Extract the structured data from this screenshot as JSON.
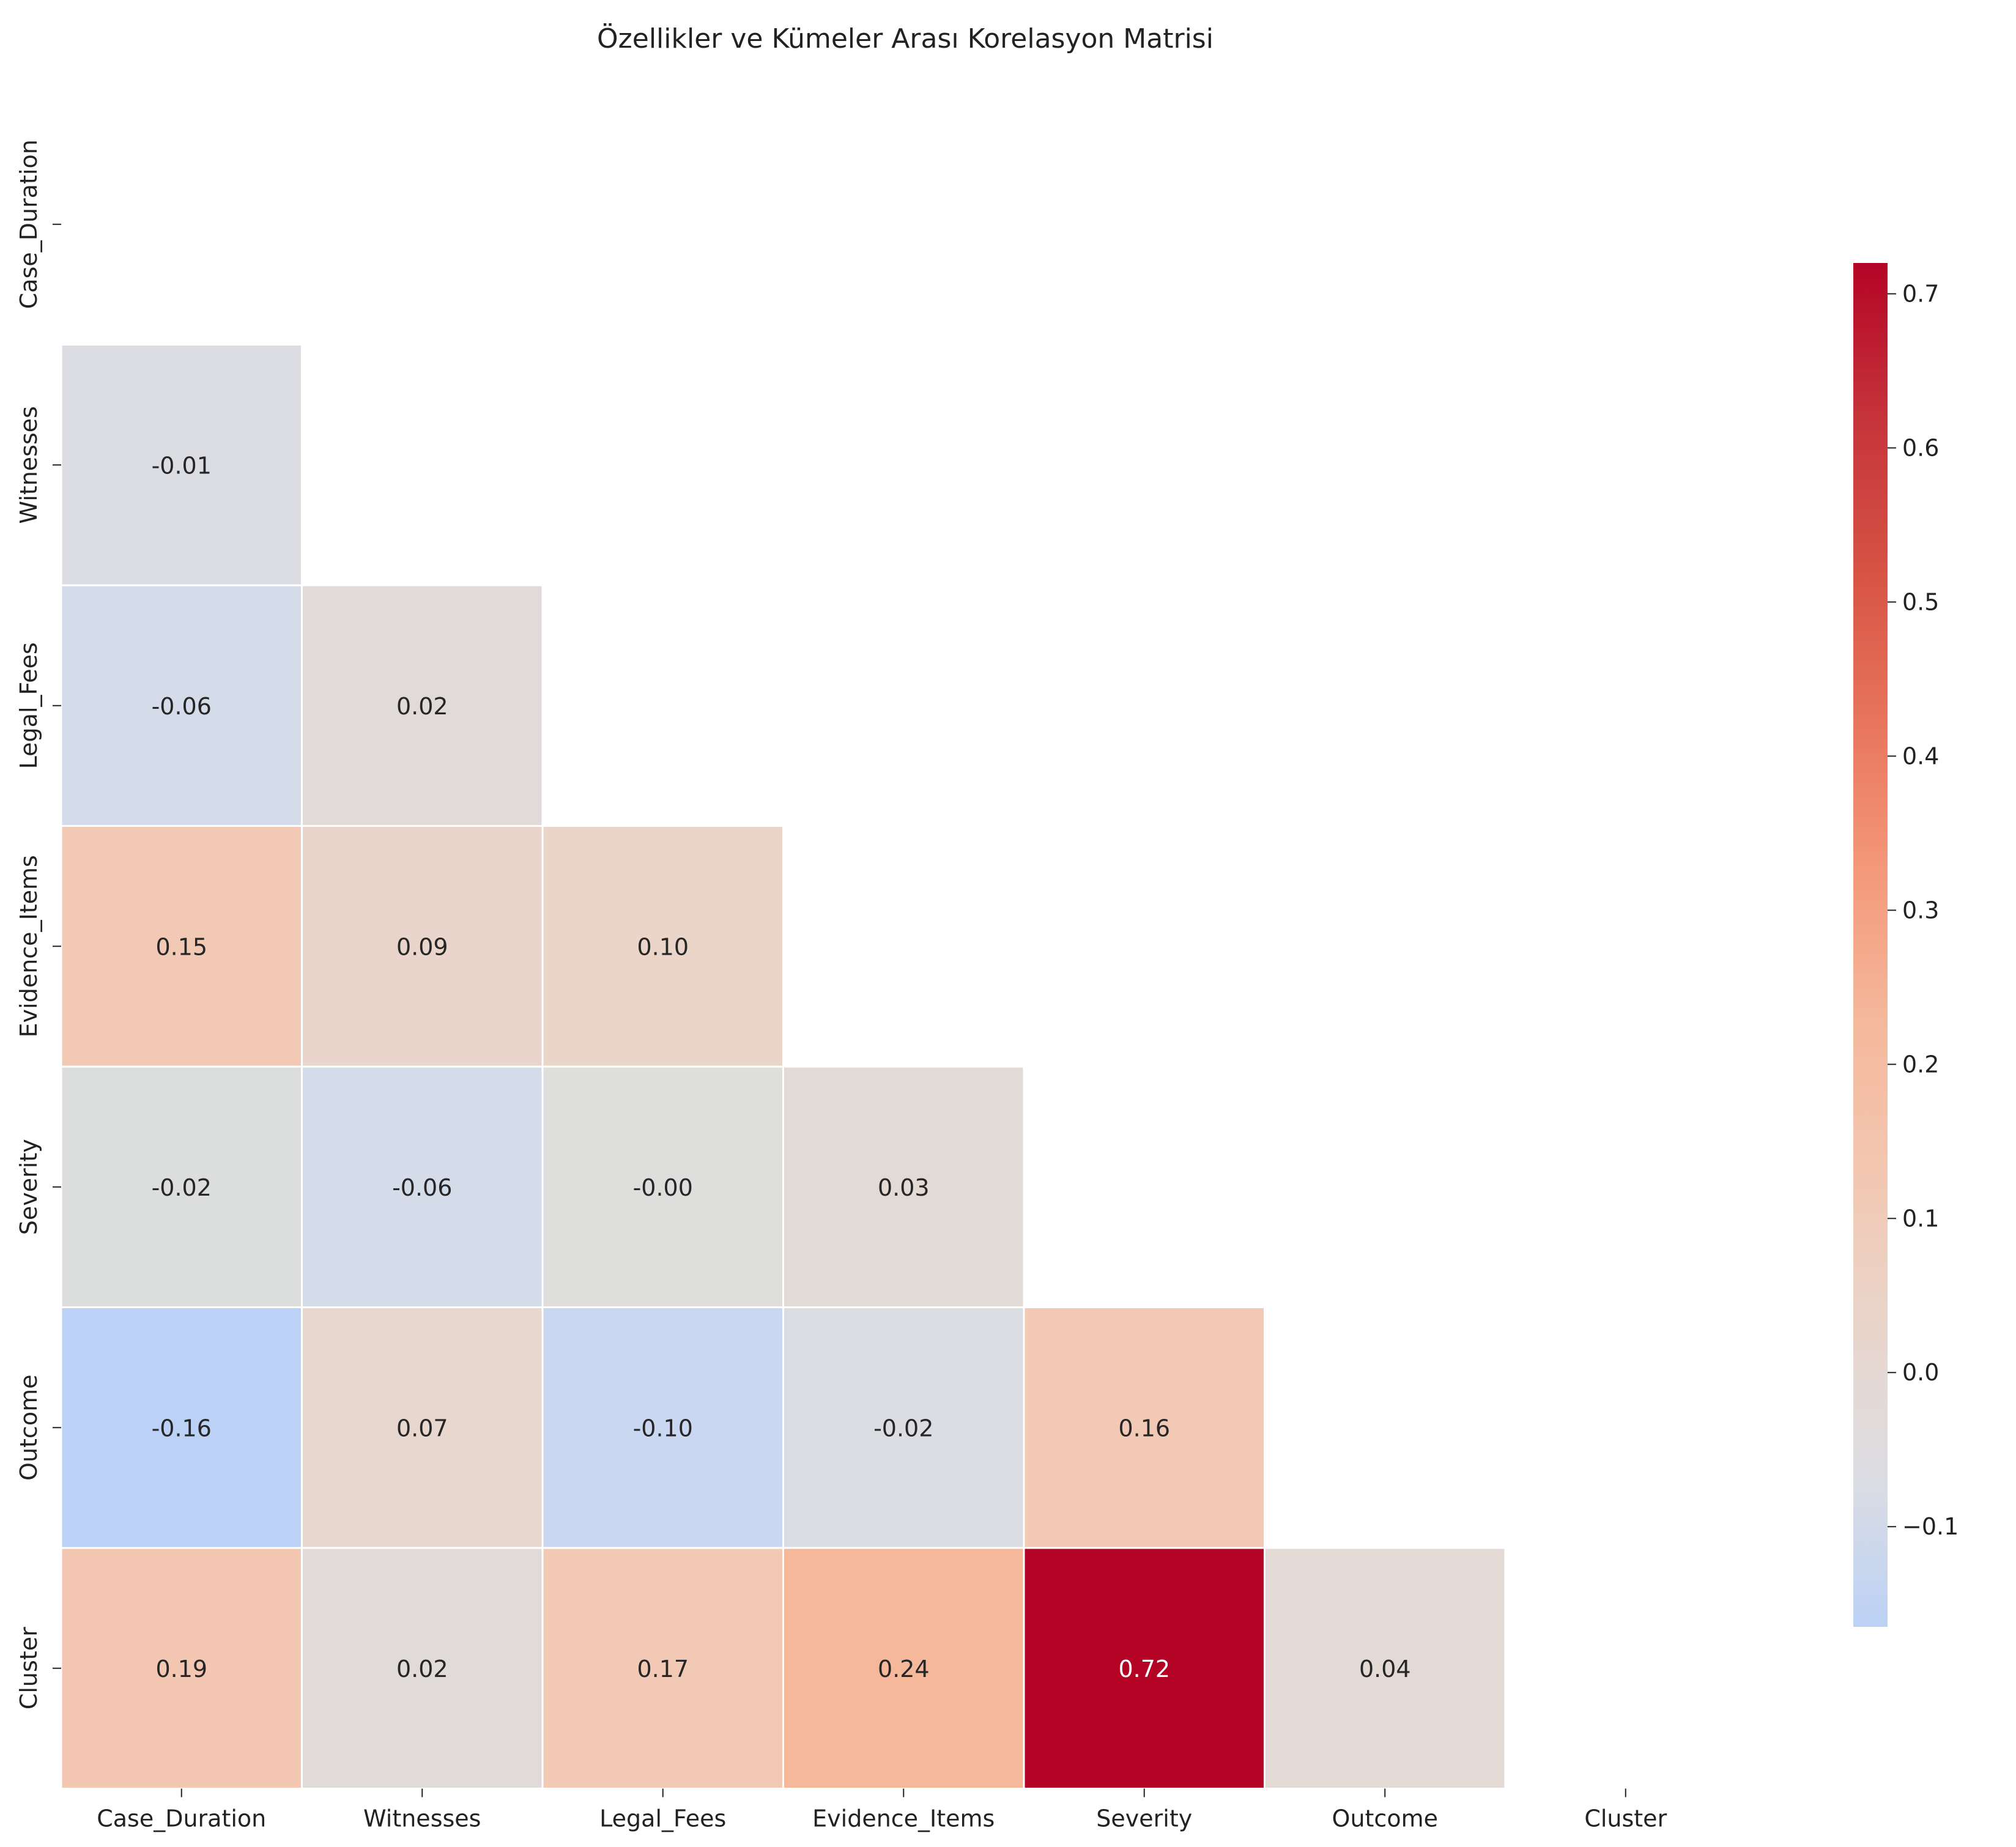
{
  "chart_data": {
    "type": "heatmap",
    "title": "Özellikler ve Kümeler Arası Korelasyon Matrisi",
    "xlabel": "",
    "ylabel": "",
    "mask": "upper-triangle-including-diagonal",
    "colormap": "coolwarm",
    "x_categories": [
      "Case_Duration",
      "Witnesses",
      "Legal_Fees",
      "Evidence_Items",
      "Severity",
      "Outcome",
      "Cluster"
    ],
    "y_categories": [
      "Case_Duration",
      "Witnesses",
      "Legal_Fees",
      "Evidence_Items",
      "Severity",
      "Outcome",
      "Cluster"
    ],
    "cells": [
      {
        "row": 1,
        "col": 0,
        "value": -0.01,
        "label": "-0.01",
        "color": "#dcdde2"
      },
      {
        "row": 2,
        "col": 0,
        "value": -0.06,
        "label": "-0.06",
        "color": "#d3dce8"
      },
      {
        "row": 2,
        "col": 1,
        "value": 0.02,
        "label": "0.02",
        "color": "#e0dbd8"
      },
      {
        "row": 3,
        "col": 0,
        "value": 0.15,
        "label": "0.15",
        "color": "#f2c9b4"
      },
      {
        "row": 3,
        "col": 1,
        "value": 0.09,
        "label": "0.09",
        "color": "#e9d5cb"
      },
      {
        "row": 3,
        "col": 2,
        "value": 0.1,
        "label": "0.10",
        "color": "#ebd4c8"
      },
      {
        "row": 4,
        "col": 0,
        "value": -0.02,
        "label": "-0.02",
        "color": "#dcdddd"
      },
      {
        "row": 4,
        "col": 1,
        "value": -0.06,
        "label": "-0.06",
        "color": "#d3dce8"
      },
      {
        "row": 4,
        "col": 2,
        "value": -0.0,
        "label": "-0.00",
        "color": "#dededd"
      },
      {
        "row": 4,
        "col": 3,
        "value": 0.03,
        "label": "0.03",
        "color": "#e2dad5"
      },
      {
        "row": 5,
        "col": 0,
        "value": -0.16,
        "label": "-0.16",
        "color": "#bcd1f6"
      },
      {
        "row": 5,
        "col": 1,
        "value": 0.07,
        "label": "0.07",
        "color": "#e7d7ce"
      },
      {
        "row": 5,
        "col": 2,
        "value": -0.1,
        "label": "-0.10",
        "color": "#c9d7f0"
      },
      {
        "row": 5,
        "col": 3,
        "value": -0.02,
        "label": "-0.02",
        "color": "#dcdde2"
      },
      {
        "row": 5,
        "col": 4,
        "value": 0.16,
        "label": "0.16",
        "color": "#f2c9b4"
      },
      {
        "row": 6,
        "col": 0,
        "value": 0.19,
        "label": "0.19",
        "color": "#f3c7b1"
      },
      {
        "row": 6,
        "col": 1,
        "value": 0.02,
        "label": "0.02",
        "color": "#e0dbd8"
      },
      {
        "row": 6,
        "col": 2,
        "value": 0.17,
        "label": "0.17",
        "color": "#f2c9b4"
      },
      {
        "row": 6,
        "col": 3,
        "value": 0.24,
        "label": "0.24",
        "color": "#f5b89b"
      },
      {
        "row": 6,
        "col": 4,
        "value": 0.72,
        "label": "0.72",
        "color": "#b40426"
      },
      {
        "row": 6,
        "col": 5,
        "value": 0.04,
        "label": "0.04",
        "color": "#e3dad5"
      }
    ],
    "colorbar": {
      "min": -0.165,
      "max": 0.72,
      "ticks": [
        -0.1,
        0.0,
        0.1,
        0.2,
        0.3,
        0.4,
        0.5,
        0.6,
        0.7
      ],
      "tick_labels": [
        "−0.1",
        "0.0",
        "0.1",
        "0.2",
        "0.3",
        "0.4",
        "0.5",
        "0.6",
        "0.7"
      ],
      "colors": [
        "#bcd1f6",
        "#dcdde2",
        "#e9d5cb",
        "#f3c7b1",
        "#f5b89b",
        "#f4987a",
        "#e7745b",
        "#d65244",
        "#c5333a",
        "#b40426"
      ]
    }
  }
}
